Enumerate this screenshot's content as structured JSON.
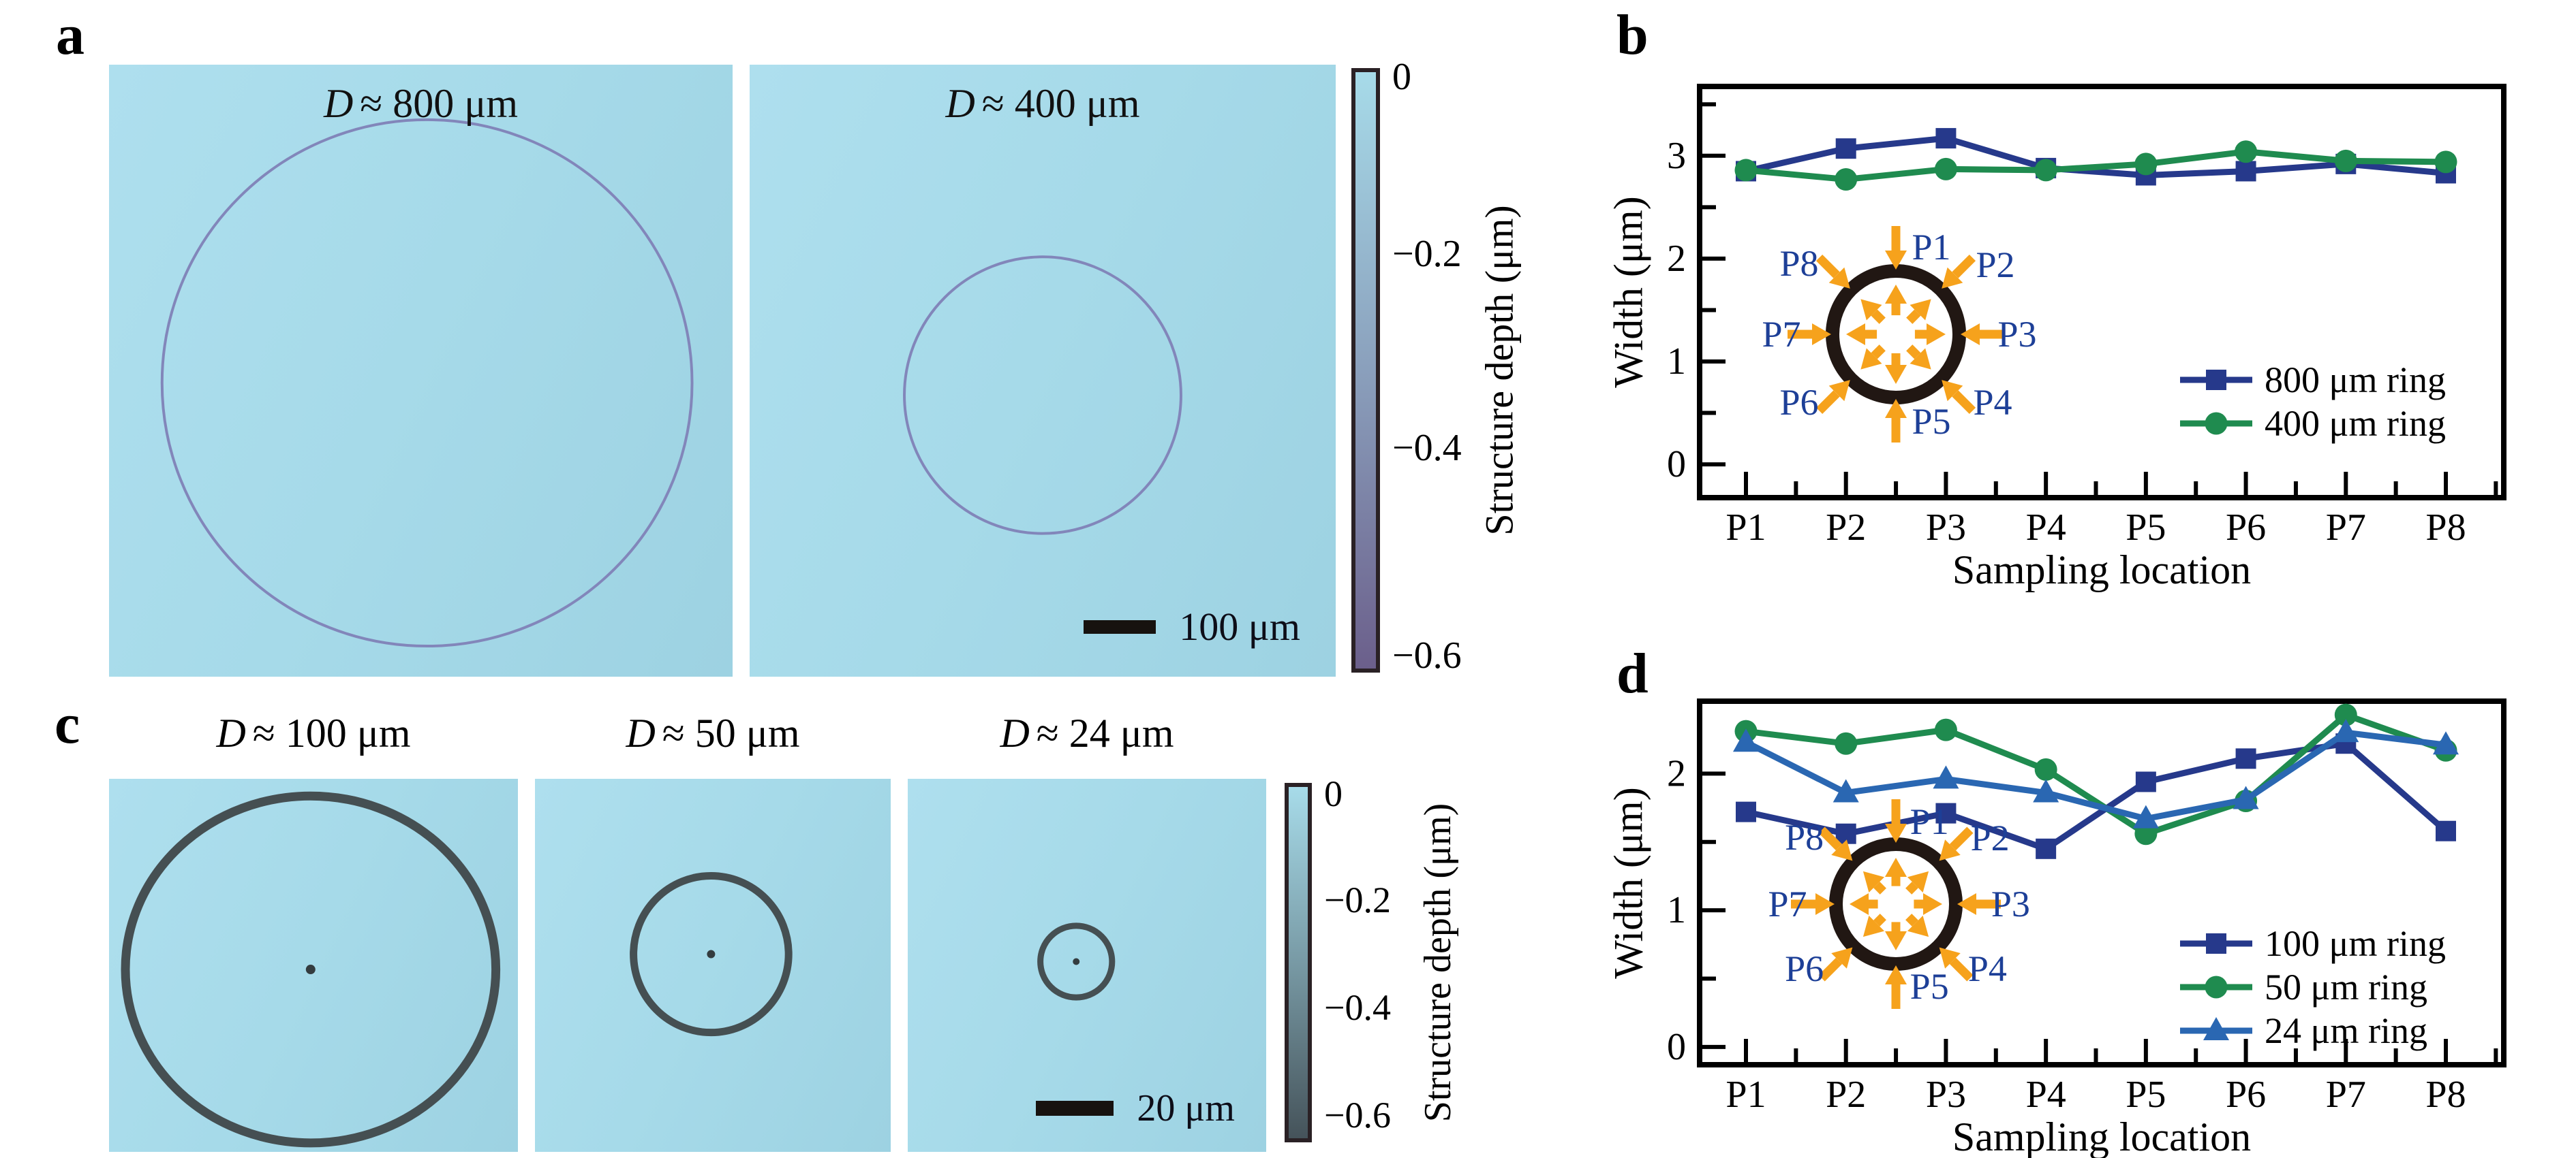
{
  "panels": {
    "a": {
      "letter": "a",
      "images": [
        {
          "title_var": "D",
          "title_rest": "≈ 800 μm"
        },
        {
          "title_var": "D",
          "title_rest": "≈ 400 μm",
          "scalebar_label": "100 μm"
        }
      ],
      "colorbar": {
        "tick_labels": [
          "0",
          "−0.2",
          "−0.4",
          "−0.6"
        ],
        "axis_label": "Structure depth (μm)",
        "top_color": "#a7dbe9",
        "bottom_color": "#6b5f8b"
      }
    },
    "b": {
      "letter": "b",
      "ylabel": "Width (μm)",
      "xlabel": "Sampling location",
      "inset_labels": [
        "P1",
        "P2",
        "P3",
        "P4",
        "P5",
        "P6",
        "P7",
        "P8"
      ],
      "inset_ring_color": "#211713",
      "inset_arrow_color": "#f6a21c"
    },
    "c": {
      "letter": "c",
      "images": [
        {
          "title_var": "D",
          "title_rest": "≈ 100 μm"
        },
        {
          "title_var": "D",
          "title_rest": "≈ 50 μm"
        },
        {
          "title_var": "D",
          "title_rest": "≈ 24 μm",
          "scalebar_label": "20 μm"
        }
      ],
      "colorbar": {
        "tick_labels": [
          "0",
          "−0.2",
          "−0.4",
          "−0.6"
        ],
        "axis_label": "Structure depth (μm)",
        "top_color": "#a7dbe9",
        "bottom_color": "#45535a"
      }
    },
    "d": {
      "letter": "d",
      "ylabel": "Width (μm)",
      "xlabel": "Sampling location",
      "inset_labels": [
        "P1",
        "P2",
        "P3",
        "P4",
        "P5",
        "P6",
        "P7",
        "P8"
      ],
      "inset_ring_color": "#211713",
      "inset_arrow_color": "#f6a21c"
    }
  },
  "chart_data": [
    {
      "id": "b",
      "type": "line",
      "title": "",
      "categories": [
        "P1",
        "P2",
        "P3",
        "P4",
        "P5",
        "P6",
        "P7",
        "P8"
      ],
      "series": [
        {
          "name": "800 μm ring",
          "marker": "square",
          "color": "#26398b",
          "values": [
            2.85,
            3.07,
            3.17,
            2.88,
            2.81,
            2.85,
            2.92,
            2.83
          ]
        },
        {
          "name": "400 μm ring",
          "marker": "circle",
          "color": "#1f8b4f",
          "values": [
            2.86,
            2.77,
            2.87,
            2.86,
            2.92,
            3.04,
            2.95,
            2.94
          ]
        }
      ],
      "xlabel": "Sampling location",
      "ylabel": "Width (μm)",
      "ylim": [
        -0.35,
        3.7
      ],
      "yticks": [
        0,
        1,
        2,
        3
      ],
      "minor_step": 0.5,
      "grid": false,
      "legend_position": "right-middle"
    },
    {
      "id": "d",
      "type": "line",
      "title": "",
      "categories": [
        "P1",
        "P2",
        "P3",
        "P4",
        "P5",
        "P6",
        "P7",
        "P8"
      ],
      "series": [
        {
          "name": "100 μm ring",
          "marker": "square",
          "color": "#26398b",
          "values": [
            1.72,
            1.56,
            1.71,
            1.45,
            1.94,
            2.11,
            2.22,
            1.58
          ]
        },
        {
          "name": "50 μm ring",
          "marker": "circle",
          "color": "#1f8b4f",
          "values": [
            2.31,
            2.22,
            2.32,
            2.03,
            1.56,
            1.8,
            2.43,
            2.17
          ]
        },
        {
          "name": "24 μm ring",
          "marker": "triangle",
          "color": "#2a67b2",
          "values": [
            2.23,
            1.86,
            1.96,
            1.86,
            1.67,
            1.81,
            2.3,
            2.21
          ]
        }
      ],
      "xlabel": "Sampling location",
      "ylabel": "Width (μm)",
      "ylim": [
        -0.15,
        2.55
      ],
      "yticks": [
        0,
        1,
        2
      ],
      "minor_step": 0.5,
      "grid": false,
      "legend_position": "right-middle"
    }
  ]
}
